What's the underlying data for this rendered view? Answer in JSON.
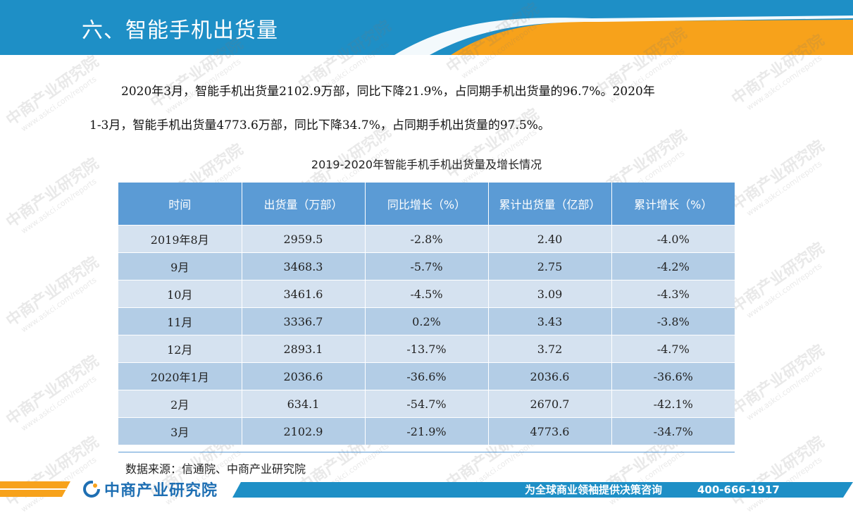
{
  "header": {
    "title": "六、智能手机出货量",
    "colors": {
      "blue": "#1e8fc6",
      "orange": "#f7a21b"
    }
  },
  "intro": {
    "paragraph1": "2020年3月，智能手机出货量2102.9万部，同比下降21.9%，占同期手机出货量的96.7%。2020年",
    "paragraph2": "1-3月，智能手机出货量4773.6万部，同比下降34.7%，占同期手机出货量的97.5%。"
  },
  "table": {
    "title": "2019-2020年智能手机手机出货量及增长情况",
    "headers": [
      "时间",
      "出货量（万部）",
      "同比增长（%）",
      "累计出货量（亿部）",
      "累计增长（%）"
    ],
    "rows": [
      [
        "2019年8月",
        "2959.5",
        "-2.8%",
        "2.40",
        "-4.0%"
      ],
      [
        "9月",
        "3468.3",
        "-5.7%",
        "2.75",
        "-4.2%"
      ],
      [
        "10月",
        "3461.6",
        "-4.5%",
        "3.09",
        "-4.3%"
      ],
      [
        "11月",
        "3336.7",
        "0.2%",
        "3.43",
        "-3.8%"
      ],
      [
        "12月",
        "2893.1",
        "-13.7%",
        "3.72",
        "-4.7%"
      ],
      [
        "2020年1月",
        "2036.6",
        "-36.6%",
        "2036.6",
        "-36.6%"
      ],
      [
        "2月",
        "634.1",
        "-54.7%",
        "2670.7",
        "-42.1%"
      ],
      [
        "3月",
        "2102.9",
        "-21.9%",
        "4773.6",
        "-34.7%"
      ]
    ],
    "source": "数据来源：信通院、中商产业研究院"
  },
  "watermark": {
    "text": "中商产业研究院",
    "sub": "www.askci.com/reports"
  },
  "footer": {
    "logo_text": "中商产业研究院",
    "slogan": "为全球商业领袖提供决策咨询",
    "phone": "400-666-1917",
    "logo_icon": "askci-logo-icon"
  }
}
